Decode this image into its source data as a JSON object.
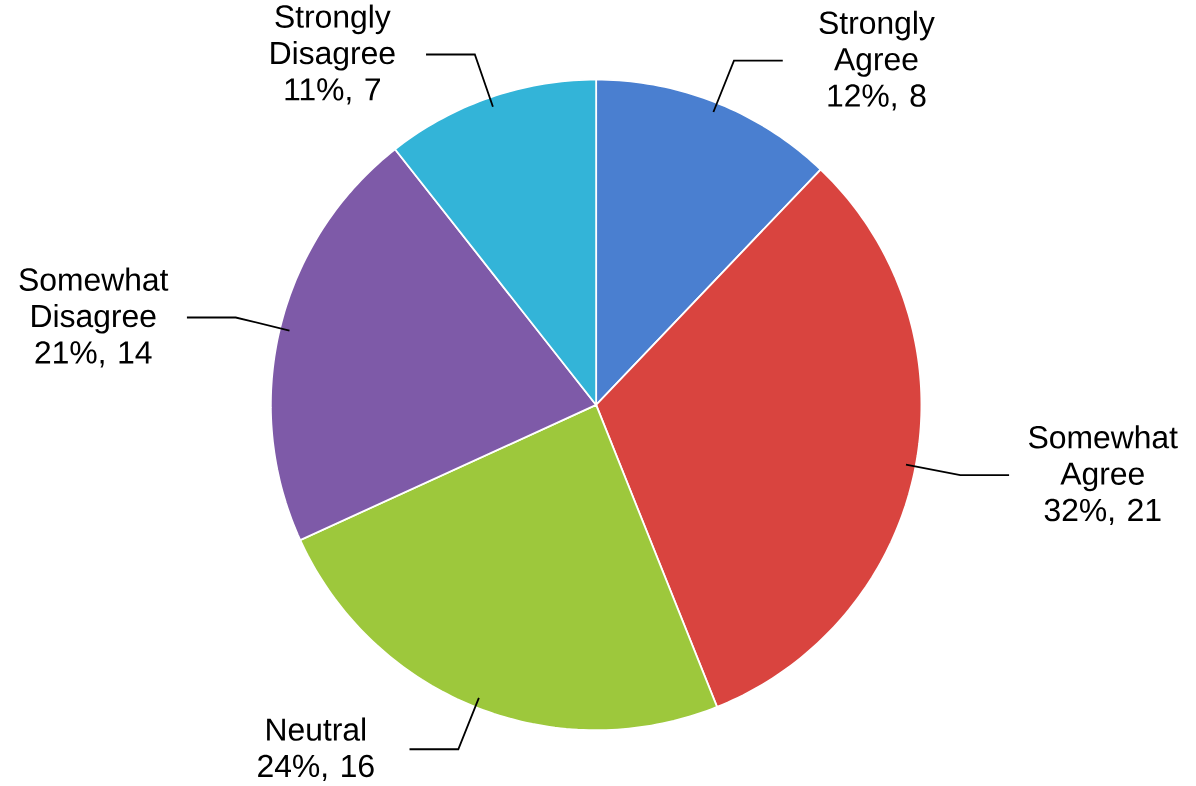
{
  "chart_data": {
    "type": "pie",
    "categories": [
      "Strongly Agree",
      "Somewhat Agree",
      "Neutral",
      "Somewhat Disagree",
      "Strongly Disagree"
    ],
    "values": [
      8,
      21,
      16,
      14,
      7
    ],
    "colors": [
      "#4a7fd0",
      "#d9443f",
      "#9dc83c",
      "#7e5aa8",
      "#33b4d8"
    ],
    "value_labels": [
      "12%, 8",
      "32%, 21",
      "24%, 16",
      "21%, 14",
      "11%, 7"
    ]
  }
}
